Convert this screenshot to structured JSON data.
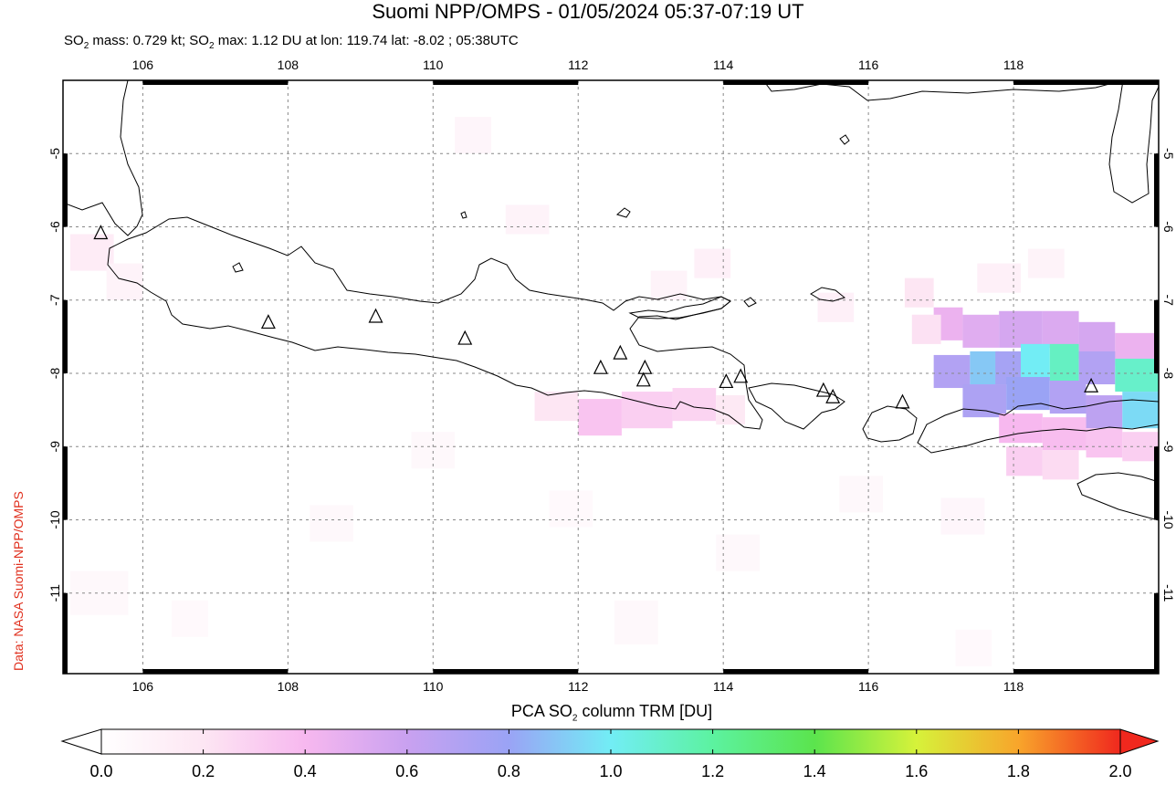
{
  "title": "Suomi NPP/OMPS - 01/05/2024 05:37-07:19 UT",
  "subtitle": {
    "so2_mass_label": "SO",
    "so2_mass_rest": " mass: 0.729 kt; SO",
    "so2_max_rest": " max: 1.12 DU at lon: 119.74 lat: -8.02 ; 05:38UTC",
    "sub": "2"
  },
  "credit": "Data: NASA Suomi-NPP/OMPS",
  "colorbar": {
    "label_pre": "PCA SO",
    "label_sub": "2",
    "label_post": " column TRM [DU]",
    "ticks": [
      "0.0",
      "0.2",
      "0.4",
      "0.6",
      "0.8",
      "1.0",
      "1.2",
      "1.4",
      "1.6",
      "1.8",
      "2.0"
    ],
    "range": [
      0.0,
      2.0
    ]
  },
  "map": {
    "lon_range": [
      104.9,
      120.0
    ],
    "lat_range": [
      -12.1,
      -4.0
    ],
    "lon_ticks": [
      "106",
      "108",
      "110",
      "112",
      "114",
      "116",
      "118"
    ],
    "lat_ticks": [
      "-5",
      "-6",
      "-7",
      "-8",
      "-9",
      "-10",
      "-11"
    ],
    "grid": true,
    "volcanoes": [
      [
        105.42,
        -6.1
      ],
      [
        107.73,
        -7.32
      ],
      [
        109.21,
        -7.24
      ],
      [
        110.44,
        -7.54
      ],
      [
        112.31,
        -7.94
      ],
      [
        112.58,
        -7.74
      ],
      [
        112.92,
        -7.94
      ],
      [
        112.9,
        -8.11
      ],
      [
        114.04,
        -8.13
      ],
      [
        114.24,
        -8.06
      ],
      [
        115.38,
        -8.25
      ],
      [
        115.51,
        -8.34
      ],
      [
        116.47,
        -8.41
      ],
      [
        119.07,
        -8.19
      ]
    ],
    "so2_cells": [
      {
        "lon": 116.9,
        "lat": -7.1,
        "w": 0.4,
        "h": 0.45,
        "v": 0.45
      },
      {
        "lon": 117.3,
        "lat": -7.2,
        "w": 0.5,
        "h": 0.45,
        "v": 0.5
      },
      {
        "lon": 117.8,
        "lat": -7.15,
        "w": 0.6,
        "h": 0.5,
        "v": 0.55
      },
      {
        "lon": 118.4,
        "lat": -7.15,
        "w": 0.5,
        "h": 0.5,
        "v": 0.52
      },
      {
        "lon": 118.9,
        "lat": -7.3,
        "w": 0.5,
        "h": 0.5,
        "v": 0.55
      },
      {
        "lon": 119.4,
        "lat": -7.45,
        "w": 0.6,
        "h": 0.45,
        "v": 0.45
      },
      {
        "lon": 116.9,
        "lat": -7.75,
        "w": 0.5,
        "h": 0.45,
        "v": 0.7
      },
      {
        "lon": 117.4,
        "lat": -7.7,
        "w": 0.4,
        "h": 0.45,
        "v": 0.9
      },
      {
        "lon": 117.75,
        "lat": -7.7,
        "w": 0.4,
        "h": 0.45,
        "v": 0.75
      },
      {
        "lon": 118.1,
        "lat": -7.6,
        "w": 0.4,
        "h": 0.5,
        "v": 1.0
      },
      {
        "lon": 118.5,
        "lat": -7.6,
        "w": 0.4,
        "h": 0.5,
        "v": 1.12
      },
      {
        "lon": 118.9,
        "lat": -7.7,
        "w": 0.5,
        "h": 0.45,
        "v": 0.7
      },
      {
        "lon": 119.4,
        "lat": -7.8,
        "w": 0.6,
        "h": 0.45,
        "v": 1.1
      },
      {
        "lon": 117.3,
        "lat": -8.15,
        "w": 0.6,
        "h": 0.45,
        "v": 0.72
      },
      {
        "lon": 117.9,
        "lat": -8.05,
        "w": 0.6,
        "h": 0.45,
        "v": 0.8
      },
      {
        "lon": 118.5,
        "lat": -8.1,
        "w": 0.5,
        "h": 0.45,
        "v": 0.7
      },
      {
        "lon": 119.0,
        "lat": -8.3,
        "w": 0.5,
        "h": 0.45,
        "v": 0.65
      },
      {
        "lon": 119.5,
        "lat": -8.25,
        "w": 0.5,
        "h": 0.5,
        "v": 0.95
      },
      {
        "lon": 117.8,
        "lat": -8.55,
        "w": 0.6,
        "h": 0.4,
        "v": 0.4
      },
      {
        "lon": 118.4,
        "lat": -8.6,
        "w": 0.6,
        "h": 0.45,
        "v": 0.38
      },
      {
        "lon": 119.0,
        "lat": -8.75,
        "w": 0.5,
        "h": 0.4,
        "v": 0.35
      },
      {
        "lon": 119.5,
        "lat": -8.8,
        "w": 0.5,
        "h": 0.4,
        "v": 0.3
      },
      {
        "lon": 117.9,
        "lat": -9.0,
        "w": 0.5,
        "h": 0.4,
        "v": 0.3
      },
      {
        "lon": 118.4,
        "lat": -9.05,
        "w": 0.5,
        "h": 0.4,
        "v": 0.25
      },
      {
        "lon": 112.0,
        "lat": -8.35,
        "w": 0.6,
        "h": 0.5,
        "v": 0.35
      },
      {
        "lon": 112.6,
        "lat": -8.25,
        "w": 0.7,
        "h": 0.5,
        "v": 0.3
      },
      {
        "lon": 113.3,
        "lat": -8.2,
        "w": 0.6,
        "h": 0.45,
        "v": 0.28
      },
      {
        "lon": 111.4,
        "lat": -8.25,
        "w": 0.6,
        "h": 0.4,
        "v": 0.2
      },
      {
        "lon": 113.9,
        "lat": -8.3,
        "w": 0.4,
        "h": 0.4,
        "v": 0.18
      },
      {
        "lon": 116.5,
        "lat": -6.7,
        "w": 0.4,
        "h": 0.4,
        "v": 0.2
      },
      {
        "lon": 116.6,
        "lat": -7.2,
        "w": 0.4,
        "h": 0.4,
        "v": 0.22
      },
      {
        "lon": 115.3,
        "lat": -6.9,
        "w": 0.5,
        "h": 0.4,
        "v": 0.12
      },
      {
        "lon": 117.5,
        "lat": -6.5,
        "w": 0.6,
        "h": 0.4,
        "v": 0.12
      },
      {
        "lon": 118.2,
        "lat": -6.3,
        "w": 0.5,
        "h": 0.4,
        "v": 0.1
      },
      {
        "lon": 113.6,
        "lat": -6.3,
        "w": 0.5,
        "h": 0.4,
        "v": 0.12
      },
      {
        "lon": 113.0,
        "lat": -6.6,
        "w": 0.5,
        "h": 0.4,
        "v": 0.1
      },
      {
        "lon": 105.0,
        "lat": -6.1,
        "w": 0.6,
        "h": 0.5,
        "v": 0.15
      },
      {
        "lon": 105.5,
        "lat": -6.5,
        "w": 0.5,
        "h": 0.5,
        "v": 0.1
      },
      {
        "lon": 111.0,
        "lat": -5.7,
        "w": 0.6,
        "h": 0.4,
        "v": 0.1
      },
      {
        "lon": 110.3,
        "lat": -4.5,
        "w": 0.5,
        "h": 0.5,
        "v": 0.08
      },
      {
        "lon": 108.3,
        "lat": -9.8,
        "w": 0.6,
        "h": 0.5,
        "v": 0.06
      },
      {
        "lon": 106.4,
        "lat": -11.1,
        "w": 0.5,
        "h": 0.5,
        "v": 0.05
      },
      {
        "lon": 105.0,
        "lat": -10.7,
        "w": 0.8,
        "h": 0.6,
        "v": 0.06
      },
      {
        "lon": 113.9,
        "lat": -10.2,
        "w": 0.6,
        "h": 0.5,
        "v": 0.06
      },
      {
        "lon": 117.0,
        "lat": -9.7,
        "w": 0.6,
        "h": 0.5,
        "v": 0.07
      },
      {
        "lon": 112.5,
        "lat": -11.1,
        "w": 0.6,
        "h": 0.6,
        "v": 0.06
      },
      {
        "lon": 117.2,
        "lat": -11.5,
        "w": 0.5,
        "h": 0.5,
        "v": 0.05
      },
      {
        "lon": 109.7,
        "lat": -8.8,
        "w": 0.6,
        "h": 0.5,
        "v": 0.06
      },
      {
        "lon": 115.6,
        "lat": -9.4,
        "w": 0.6,
        "h": 0.5,
        "v": 0.06
      },
      {
        "lon": 111.6,
        "lat": -9.6,
        "w": 0.6,
        "h": 0.5,
        "v": 0.05
      }
    ]
  }
}
